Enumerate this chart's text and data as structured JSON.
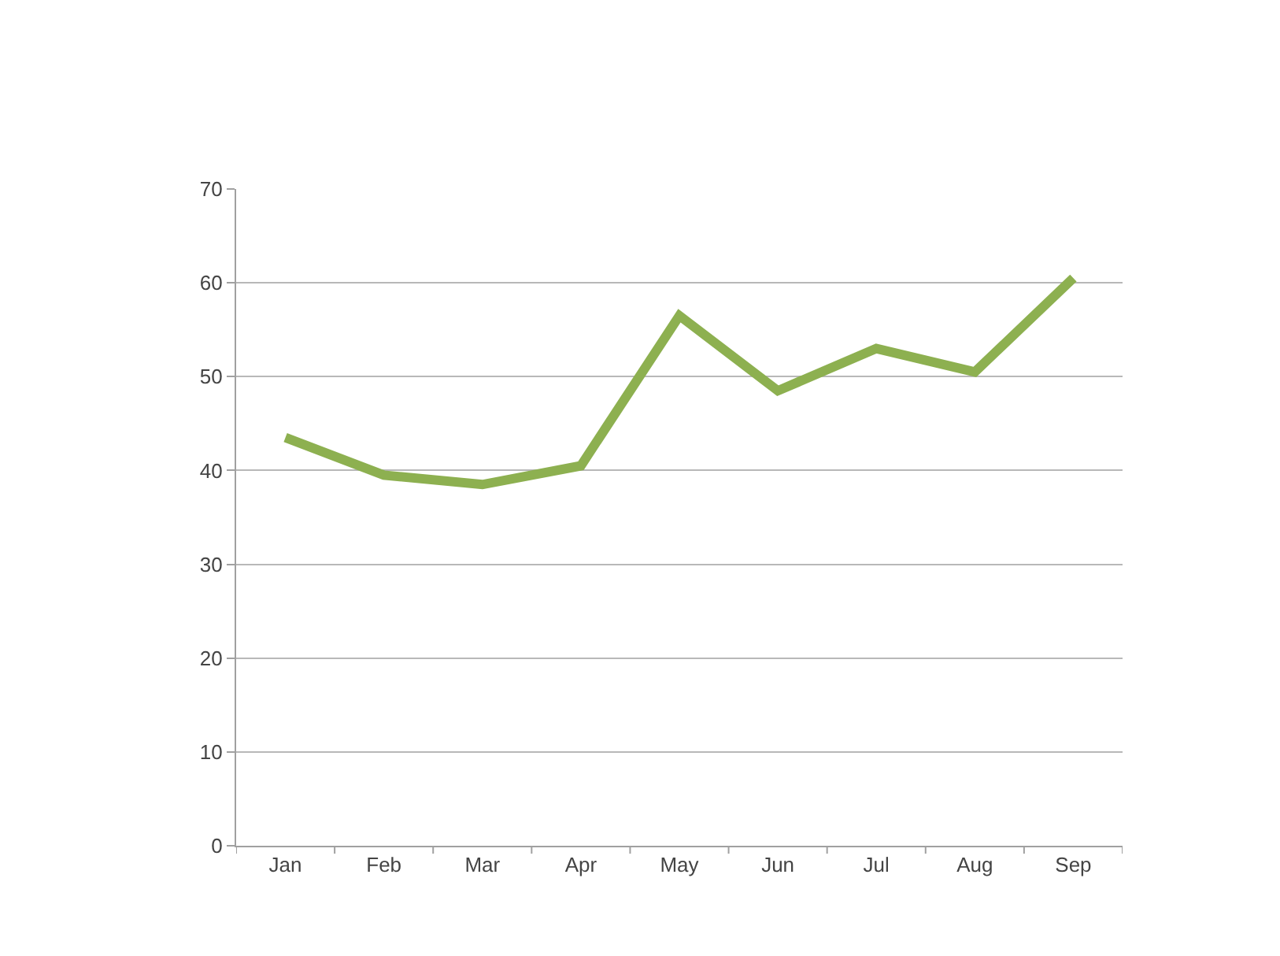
{
  "chart_data": {
    "type": "line",
    "categories": [
      "Jan",
      "Feb",
      "Mar",
      "Apr",
      "May",
      "Jun",
      "Jul",
      "Aug",
      "Sep"
    ],
    "series": [
      {
        "color": "#8db050",
        "values": [
          43.5,
          39.5,
          38.5,
          40.5,
          56.5,
          48.5,
          53,
          50.5,
          60.5
        ]
      }
    ],
    "ylim": [
      0,
      70
    ],
    "yticks": [
      0,
      10,
      20,
      30,
      40,
      50,
      60,
      70
    ],
    "grid": "y",
    "marker": "none",
    "line_style": "solid"
  }
}
